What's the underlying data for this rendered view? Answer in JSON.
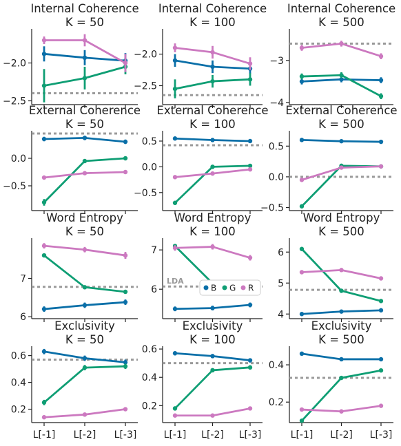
{
  "colors": {
    "B": "#0a6fa8",
    "G": "#0f9e74",
    "R": "#cc79c0",
    "reference": "#9a9a9a"
  },
  "legend": {
    "placement": "lower-right",
    "panel": 7,
    "entries": [
      {
        "key": "B",
        "label": "B"
      },
      {
        "key": "G",
        "label": "G"
      },
      {
        "key": "R",
        "label": "R"
      }
    ]
  },
  "reference_label": {
    "text": "LDA",
    "panel": 7
  },
  "chart_data": [
    {
      "type": "line",
      "title": "Internal Coherence",
      "subtitle": "K = 50",
      "categories": [
        "L[-1]",
        "L[-2]",
        "L[-3]"
      ],
      "ylim": [
        -2.55,
        -1.55
      ],
      "yticks": [
        -2.5,
        -2.0
      ],
      "ytick_labels": [
        "−2.5",
        "−2.0"
      ],
      "reference": -2.4,
      "show_xticklabels": false,
      "series": [
        {
          "key": "B",
          "values": [
            -1.88,
            -1.93,
            -1.97
          ],
          "err": [
            0.1,
            0.1,
            0.1
          ]
        },
        {
          "key": "G",
          "values": [
            -2.3,
            -2.2,
            -2.05
          ],
          "err": [
            0.22,
            0.15,
            0.1
          ]
        },
        {
          "key": "R",
          "values": [
            -1.7,
            -1.7,
            -2.0
          ],
          "err": [
            0.05,
            0.08,
            0.12
          ]
        }
      ]
    },
    {
      "type": "line",
      "title": "Internal Coherence",
      "subtitle": "K = 100",
      "categories": [
        "L[-1]",
        "L[-2]",
        "L[-3]"
      ],
      "ylim": [
        -2.8,
        -1.6
      ],
      "yticks": [
        -2.5,
        -2.0
      ],
      "ytick_labels": [
        "−2.5",
        "−2.0"
      ],
      "reference": -2.65,
      "show_xticklabels": false,
      "series": [
        {
          "key": "B",
          "values": [
            -2.1,
            -2.2,
            -2.23
          ],
          "err": [
            0.1,
            0.1,
            0.08
          ]
        },
        {
          "key": "G",
          "values": [
            -2.55,
            -2.43,
            -2.4
          ],
          "err": [
            0.15,
            0.1,
            0.1
          ]
        },
        {
          "key": "R",
          "values": [
            -1.9,
            -1.97,
            -2.15
          ],
          "err": [
            0.07,
            0.1,
            0.1
          ]
        }
      ]
    },
    {
      "type": "line",
      "title": "Internal Coherence",
      "subtitle": "K = 500",
      "categories": [
        "L[-1]",
        "L[-2]",
        "L[-3]"
      ],
      "ylim": [
        -4.05,
        -2.25
      ],
      "yticks": [
        -4,
        -3
      ],
      "ytick_labels": [
        "−4",
        "−3"
      ],
      "reference": -2.6,
      "show_xticklabels": false,
      "series": [
        {
          "key": "B",
          "values": [
            -3.5,
            -3.45,
            -3.47
          ],
          "err": [
            0.07,
            0.07,
            0.07
          ]
        },
        {
          "key": "G",
          "values": [
            -3.38,
            -3.35,
            -3.85
          ],
          "err": [
            0.07,
            0.07,
            0.07
          ]
        },
        {
          "key": "R",
          "values": [
            -2.7,
            -2.6,
            -2.9
          ],
          "err": [
            0.07,
            0.07,
            0.07
          ]
        }
      ]
    },
    {
      "type": "line",
      "title": "External Coherence",
      "subtitle": "K = 50",
      "categories": [
        "L[-1]",
        "L[-2]",
        "L[-3]"
      ],
      "ylim": [
        -0.95,
        0.5
      ],
      "yticks": [
        -0.5,
        0.0
      ],
      "ytick_labels": [
        "−0.5",
        "0.0"
      ],
      "reference": 0.45,
      "show_xticklabels": false,
      "series": [
        {
          "key": "B",
          "values": [
            0.35,
            0.37,
            0.3
          ],
          "err": [
            0.04,
            0.04,
            0.04
          ]
        },
        {
          "key": "G",
          "values": [
            -0.8,
            -0.05,
            0.0
          ],
          "err": [
            0.06,
            0.03,
            0.03
          ]
        },
        {
          "key": "R",
          "values": [
            -0.35,
            -0.27,
            -0.25
          ],
          "err": [
            0.03,
            0.03,
            0.03
          ]
        }
      ]
    },
    {
      "type": "line",
      "title": "External Coherence",
      "subtitle": "K = 100",
      "categories": [
        "L[-1]",
        "L[-2]",
        "L[-3]"
      ],
      "ylim": [
        -0.85,
        0.7
      ],
      "yticks": [
        -0.5,
        0.0,
        0.5
      ],
      "ytick_labels": [
        "−0.5",
        "0.0",
        "0.5"
      ],
      "reference": 0.42,
      "show_xticklabels": false,
      "series": [
        {
          "key": "B",
          "values": [
            0.55,
            0.52,
            0.5
          ],
          "err": [
            0.03,
            0.03,
            0.03
          ]
        },
        {
          "key": "G",
          "values": [
            -0.7,
            0.0,
            0.02
          ],
          "err": [
            0.04,
            0.03,
            0.03
          ]
        },
        {
          "key": "R",
          "values": [
            -0.2,
            -0.13,
            -0.05
          ],
          "err": [
            0.03,
            0.03,
            0.03
          ]
        }
      ]
    },
    {
      "type": "line",
      "title": "External Coherence",
      "subtitle": "K = 500",
      "categories": [
        "L[-1]",
        "L[-2]",
        "L[-3]"
      ],
      "ylim": [
        -0.55,
        0.75
      ],
      "yticks": [
        -0.5,
        0.0,
        0.5
      ],
      "ytick_labels": [
        "−0.5",
        "0.0",
        "0.5"
      ],
      "reference": 0.0,
      "show_xticklabels": false,
      "series": [
        {
          "key": "B",
          "values": [
            0.6,
            0.58,
            0.57
          ],
          "err": [
            0.02,
            0.02,
            0.02
          ]
        },
        {
          "key": "G",
          "values": [
            -0.48,
            0.18,
            0.17
          ],
          "err": [
            0.02,
            0.02,
            0.02
          ]
        },
        {
          "key": "R",
          "values": [
            -0.05,
            0.15,
            0.17
          ],
          "err": [
            0.02,
            0.02,
            0.02
          ]
        }
      ]
    },
    {
      "type": "line",
      "title": "Word Entropy",
      "subtitle": "K = 50",
      "categories": [
        "L[-1]",
        "L[-2]",
        "L[-3]"
      ],
      "ylim": [
        5.95,
        8.05
      ],
      "yticks": [
        6,
        7
      ],
      "ytick_labels": [
        "6",
        "7"
      ],
      "reference": 6.78,
      "show_xticklabels": false,
      "series": [
        {
          "key": "B",
          "values": [
            6.2,
            6.3,
            6.38
          ],
          "err": [
            0.07,
            0.07,
            0.07
          ]
        },
        {
          "key": "G",
          "values": [
            7.6,
            6.77,
            6.65
          ],
          "err": [
            0.05,
            0.05,
            0.05
          ]
        },
        {
          "key": "R",
          "values": [
            7.85,
            7.75,
            7.6
          ],
          "err": [
            0.07,
            0.07,
            0.09
          ]
        }
      ]
    },
    {
      "type": "line",
      "title": "Word Entropy",
      "subtitle": "K = 100",
      "categories": [
        "L[-1]",
        "L[-2]",
        "L[-3]"
      ],
      "ylim": [
        5.25,
        7.3
      ],
      "yticks": [
        6,
        7
      ],
      "ytick_labels": [
        "6",
        "7"
      ],
      "reference": 6.07,
      "show_xticklabels": false,
      "series": [
        {
          "key": "B",
          "values": [
            5.5,
            5.52,
            5.6
          ],
          "err": [
            0.06,
            0.06,
            0.06
          ]
        },
        {
          "key": "G",
          "values": [
            7.1,
            6.15,
            5.95
          ],
          "err": [
            0.05,
            0.05,
            0.05
          ]
        },
        {
          "key": "R",
          "values": [
            7.05,
            7.08,
            6.8
          ],
          "err": [
            0.07,
            0.07,
            0.07
          ]
        }
      ]
    },
    {
      "type": "line",
      "title": "Word Entropy",
      "subtitle": "K = 500",
      "categories": [
        "L[-1]",
        "L[-2]",
        "L[-3]"
      ],
      "ylim": [
        3.85,
        6.45
      ],
      "yticks": [
        4,
        5,
        6
      ],
      "ytick_labels": [
        "4",
        "5",
        "6"
      ],
      "reference": 4.78,
      "show_xticklabels": false,
      "series": [
        {
          "key": "B",
          "values": [
            4.0,
            4.08,
            4.12
          ],
          "err": [
            0.02,
            0.02,
            0.02
          ]
        },
        {
          "key": "G",
          "values": [
            6.1,
            4.75,
            4.42
          ],
          "err": [
            0.02,
            0.02,
            0.02
          ]
        },
        {
          "key": "R",
          "values": [
            5.35,
            5.42,
            5.15
          ],
          "err": [
            0.02,
            0.02,
            0.02
          ]
        }
      ]
    },
    {
      "type": "line",
      "title": "Exclusivity",
      "subtitle": "K = 50",
      "categories": [
        "L[-1]",
        "L[-2]",
        "L[-3]"
      ],
      "ylim": [
        0.1,
        0.67
      ],
      "yticks": [
        0.2,
        0.4,
        0.6
      ],
      "ytick_labels": [
        "0.2",
        "0.4",
        "0.6"
      ],
      "reference": 0.57,
      "show_xticklabels": true,
      "series": [
        {
          "key": "B",
          "values": [
            0.63,
            0.58,
            0.55
          ],
          "err": [
            0.02,
            0.02,
            0.02
          ]
        },
        {
          "key": "G",
          "values": [
            0.25,
            0.51,
            0.52
          ],
          "err": [
            0.02,
            0.02,
            0.02
          ]
        },
        {
          "key": "R",
          "values": [
            0.14,
            0.16,
            0.2
          ],
          "err": [
            0.015,
            0.015,
            0.015
          ]
        }
      ]
    },
    {
      "type": "line",
      "title": "Exclusivity",
      "subtitle": "K = 100",
      "categories": [
        "L[-1]",
        "L[-2]",
        "L[-3]"
      ],
      "ylim": [
        0.08,
        0.62
      ],
      "yticks": [
        0.2,
        0.4,
        0.6
      ],
      "ytick_labels": [
        "0.2",
        "0.4",
        "0.6"
      ],
      "reference": 0.5,
      "show_xticklabels": true,
      "series": [
        {
          "key": "B",
          "values": [
            0.57,
            0.55,
            0.52
          ],
          "err": [
            0.015,
            0.015,
            0.015
          ]
        },
        {
          "key": "G",
          "values": [
            0.18,
            0.45,
            0.47
          ],
          "err": [
            0.015,
            0.015,
            0.015
          ]
        },
        {
          "key": "R",
          "values": [
            0.13,
            0.13,
            0.18
          ],
          "err": [
            0.01,
            0.01,
            0.01
          ]
        }
      ]
    },
    {
      "type": "line",
      "title": "Exclusivity",
      "subtitle": "K = 500",
      "categories": [
        "L[-1]",
        "L[-2]",
        "L[-3]"
      ],
      "ylim": [
        0.09,
        0.5
      ],
      "yticks": [
        0.2,
        0.4
      ],
      "ytick_labels": [
        "0.2",
        "0.4"
      ],
      "reference": 0.33,
      "show_xticklabels": true,
      "series": [
        {
          "key": "B",
          "values": [
            0.46,
            0.43,
            0.43
          ],
          "err": [
            0.005,
            0.005,
            0.005
          ]
        },
        {
          "key": "G",
          "values": [
            0.1,
            0.33,
            0.37
          ],
          "err": [
            0.005,
            0.005,
            0.005
          ]
        },
        {
          "key": "R",
          "values": [
            0.16,
            0.15,
            0.18
          ],
          "err": [
            0.005,
            0.005,
            0.005
          ]
        }
      ]
    }
  ]
}
